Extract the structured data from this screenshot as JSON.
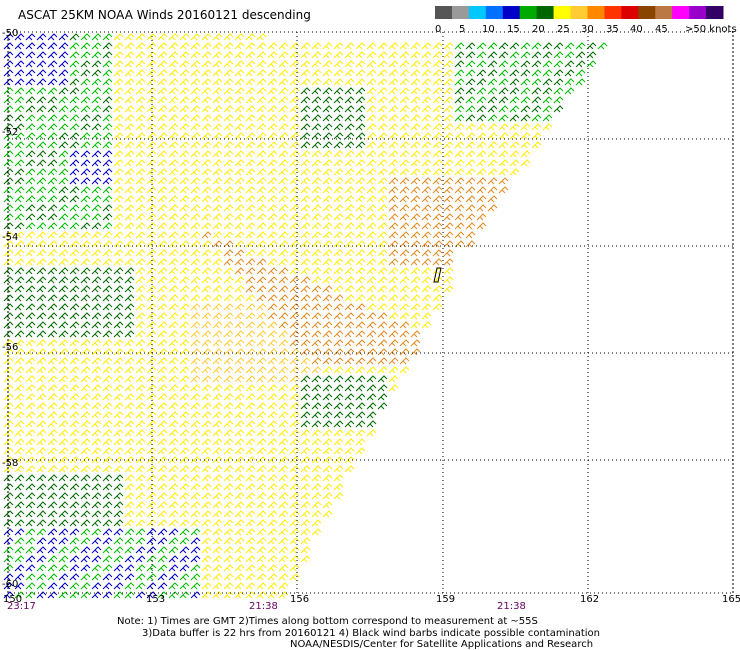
{
  "title": "ASCAT 25KM NOAA Winds 20160121 descending",
  "legend": {
    "labels": [
      "0",
      "5",
      "10",
      "15",
      "20",
      "25",
      "30",
      "35",
      "40",
      "45",
      ">50 knots"
    ],
    "colors": [
      "#555555",
      "#9a9a9a",
      "#00c8ff",
      "#0070ff",
      "#0000c8",
      "#00aa00",
      "#006600",
      "#ffff00",
      "#ffcc33",
      "#ff8800",
      "#ff3300",
      "#dd0000",
      "#884400",
      "#bb7744",
      "#ff00ff",
      "#9900cc",
      "#330066"
    ]
  },
  "axes": {
    "lon_labels": [
      "150",
      "153",
      "156",
      "159",
      "162",
      "165"
    ],
    "lat_labels": [
      "-50",
      "-52",
      "-54",
      "-56",
      "-58",
      "-60"
    ],
    "time_labels": [
      "23:17",
      "21:38",
      "21:38"
    ]
  },
  "notes": {
    "line1": "Note: 1) Times are GMT 2)Times along bottom correspond to measurement at ~55S",
    "line2": "3)Data buffer is 22 hrs from 20160121 4) Black wind barbs indicate possible contamination",
    "line3": "NOAA/NESDIS/Center for Satellite Applications and Research"
  },
  "colors": {
    "wind_green": "#00bb00",
    "wind_darkgreen": "#006a00",
    "wind_blue": "#0000cc",
    "wind_yellow": "#ffee00",
    "wind_gold": "#ffcc33",
    "wind_orange": "#e08a20",
    "time_label": "#660066"
  }
}
